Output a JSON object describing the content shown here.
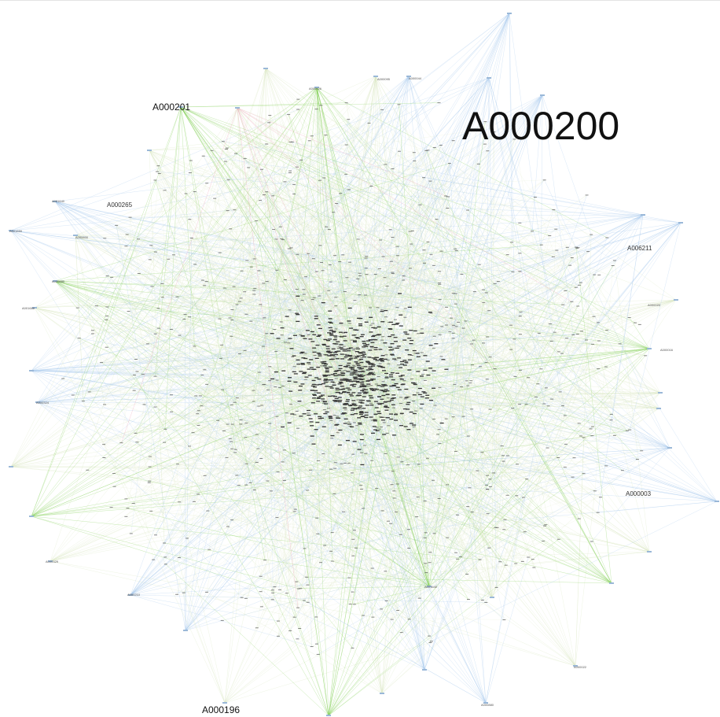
{
  "graph": {
    "type": "network",
    "colors": {
      "edge_default": "#d9e6c2",
      "edge_blue": "#a9c9ee",
      "edge_green": "#7fcf4f",
      "edge_pink": "#f0a0b8",
      "node_core": "#3a3a3a",
      "label": "#111111"
    },
    "hub_labels": {
      "a000200": "A000200",
      "a000201": "A000201",
      "a000265": "A000265",
      "a000196": "A000196",
      "a000003": "A000003",
      "a006211": "A006211"
    },
    "small_labels": {
      "s1": "A000526",
      "s2": "A000880",
      "s3": "A000210"
    },
    "tiny_labels": [
      "A001640",
      "A001659",
      "A000600",
      "A001688",
      "A000324",
      "A000329",
      "A000095",
      "A000044",
      "A000020",
      "A000016",
      "A000022",
      "A000880"
    ]
  }
}
